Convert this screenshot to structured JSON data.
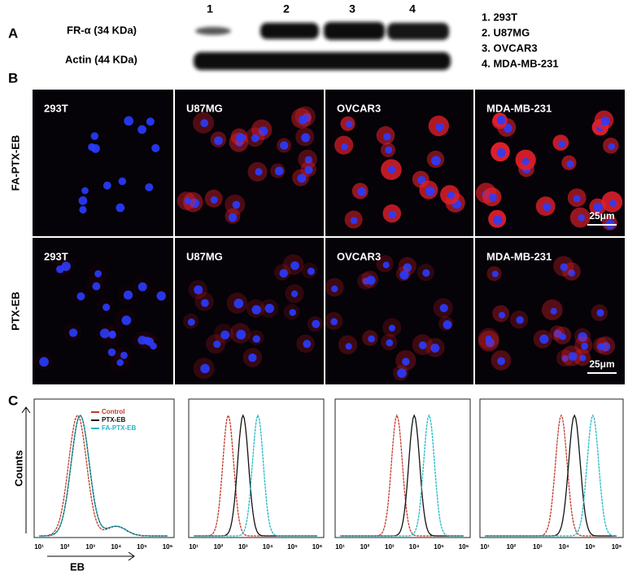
{
  "panel_labels": [
    "A",
    "B",
    "C"
  ],
  "western_blot": {
    "lane_numbers": [
      "1",
      "2",
      "3",
      "4"
    ],
    "rows": [
      "FR-α (34 KDa)",
      "Actin (44 KDa)"
    ],
    "legend": [
      "1. 293T",
      "2. U87MG",
      "3. OVCAR3",
      "4. MDA-MB-231"
    ]
  },
  "microscopy": {
    "columns": [
      "293T",
      "U87MG",
      "OVCAR3",
      "MDA-MB-231"
    ],
    "rows": [
      "FA-PTX-EB",
      "PTX-EB"
    ],
    "scale_bar": "25μm"
  },
  "flow": {
    "legend": [
      {
        "name": "Control",
        "color": "#c0392b"
      },
      {
        "name": "PTX-EB",
        "color": "#111111"
      },
      {
        "name": "FA-PTX-EB",
        "color": "#1fb8c8"
      }
    ],
    "y_label": "Counts",
    "x_label": "EB",
    "ticks": [
      "10¹",
      "10²",
      "10³",
      "10⁴",
      "10⁵",
      "10⁶"
    ]
  }
}
